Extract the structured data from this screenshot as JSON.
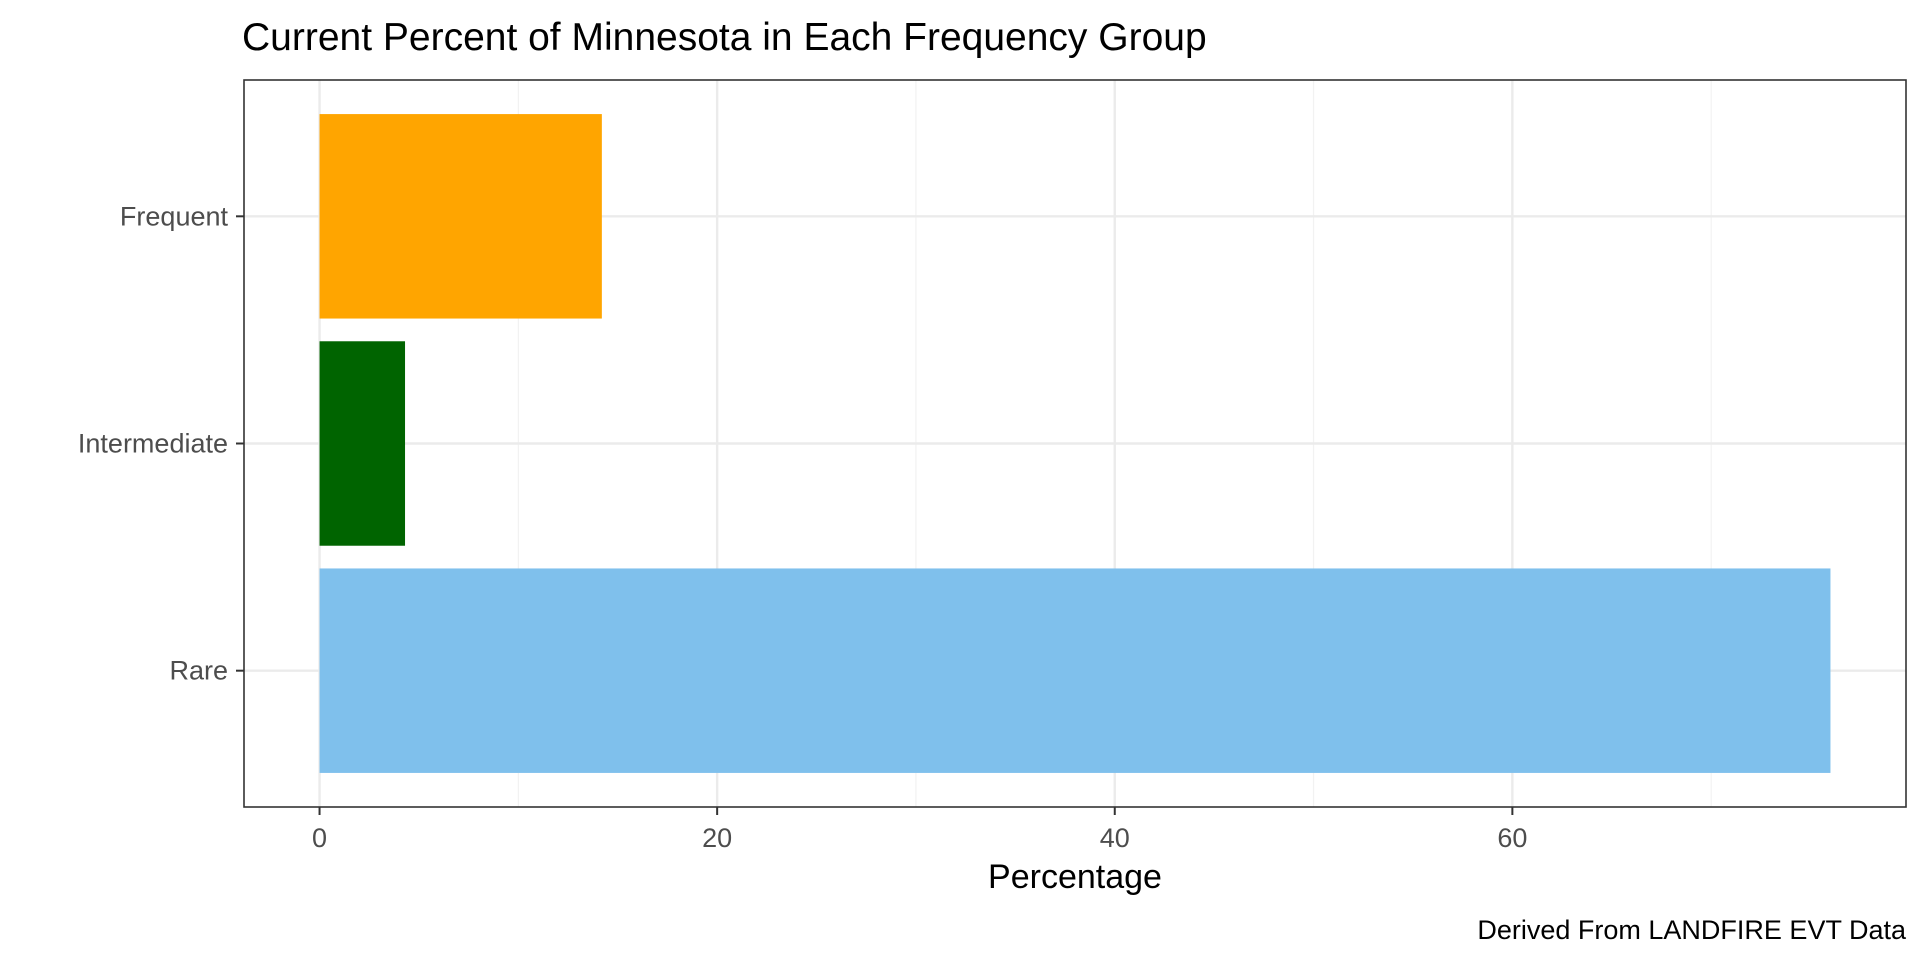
{
  "chart_data": {
    "type": "bar",
    "orientation": "horizontal",
    "title": "Current Percent of Minnesota in Each Frequency Group",
    "xlabel": "Percentage",
    "ylabel": "",
    "caption": "Derived From LANDFIRE EVT Data",
    "categories": [
      "Frequent",
      "Intermediate",
      "Rare"
    ],
    "values": [
      14.2,
      4.3,
      76.0
    ],
    "colors": [
      "#FFA500",
      "#006400",
      "#7FC0EC"
    ],
    "xlim": [
      -3.8,
      79.8
    ],
    "xticks": [
      0,
      20,
      40,
      60
    ],
    "xtick_labels": [
      "0",
      "20",
      "40",
      "60"
    ],
    "grid": true,
    "legend": "none",
    "theme": "bw"
  }
}
